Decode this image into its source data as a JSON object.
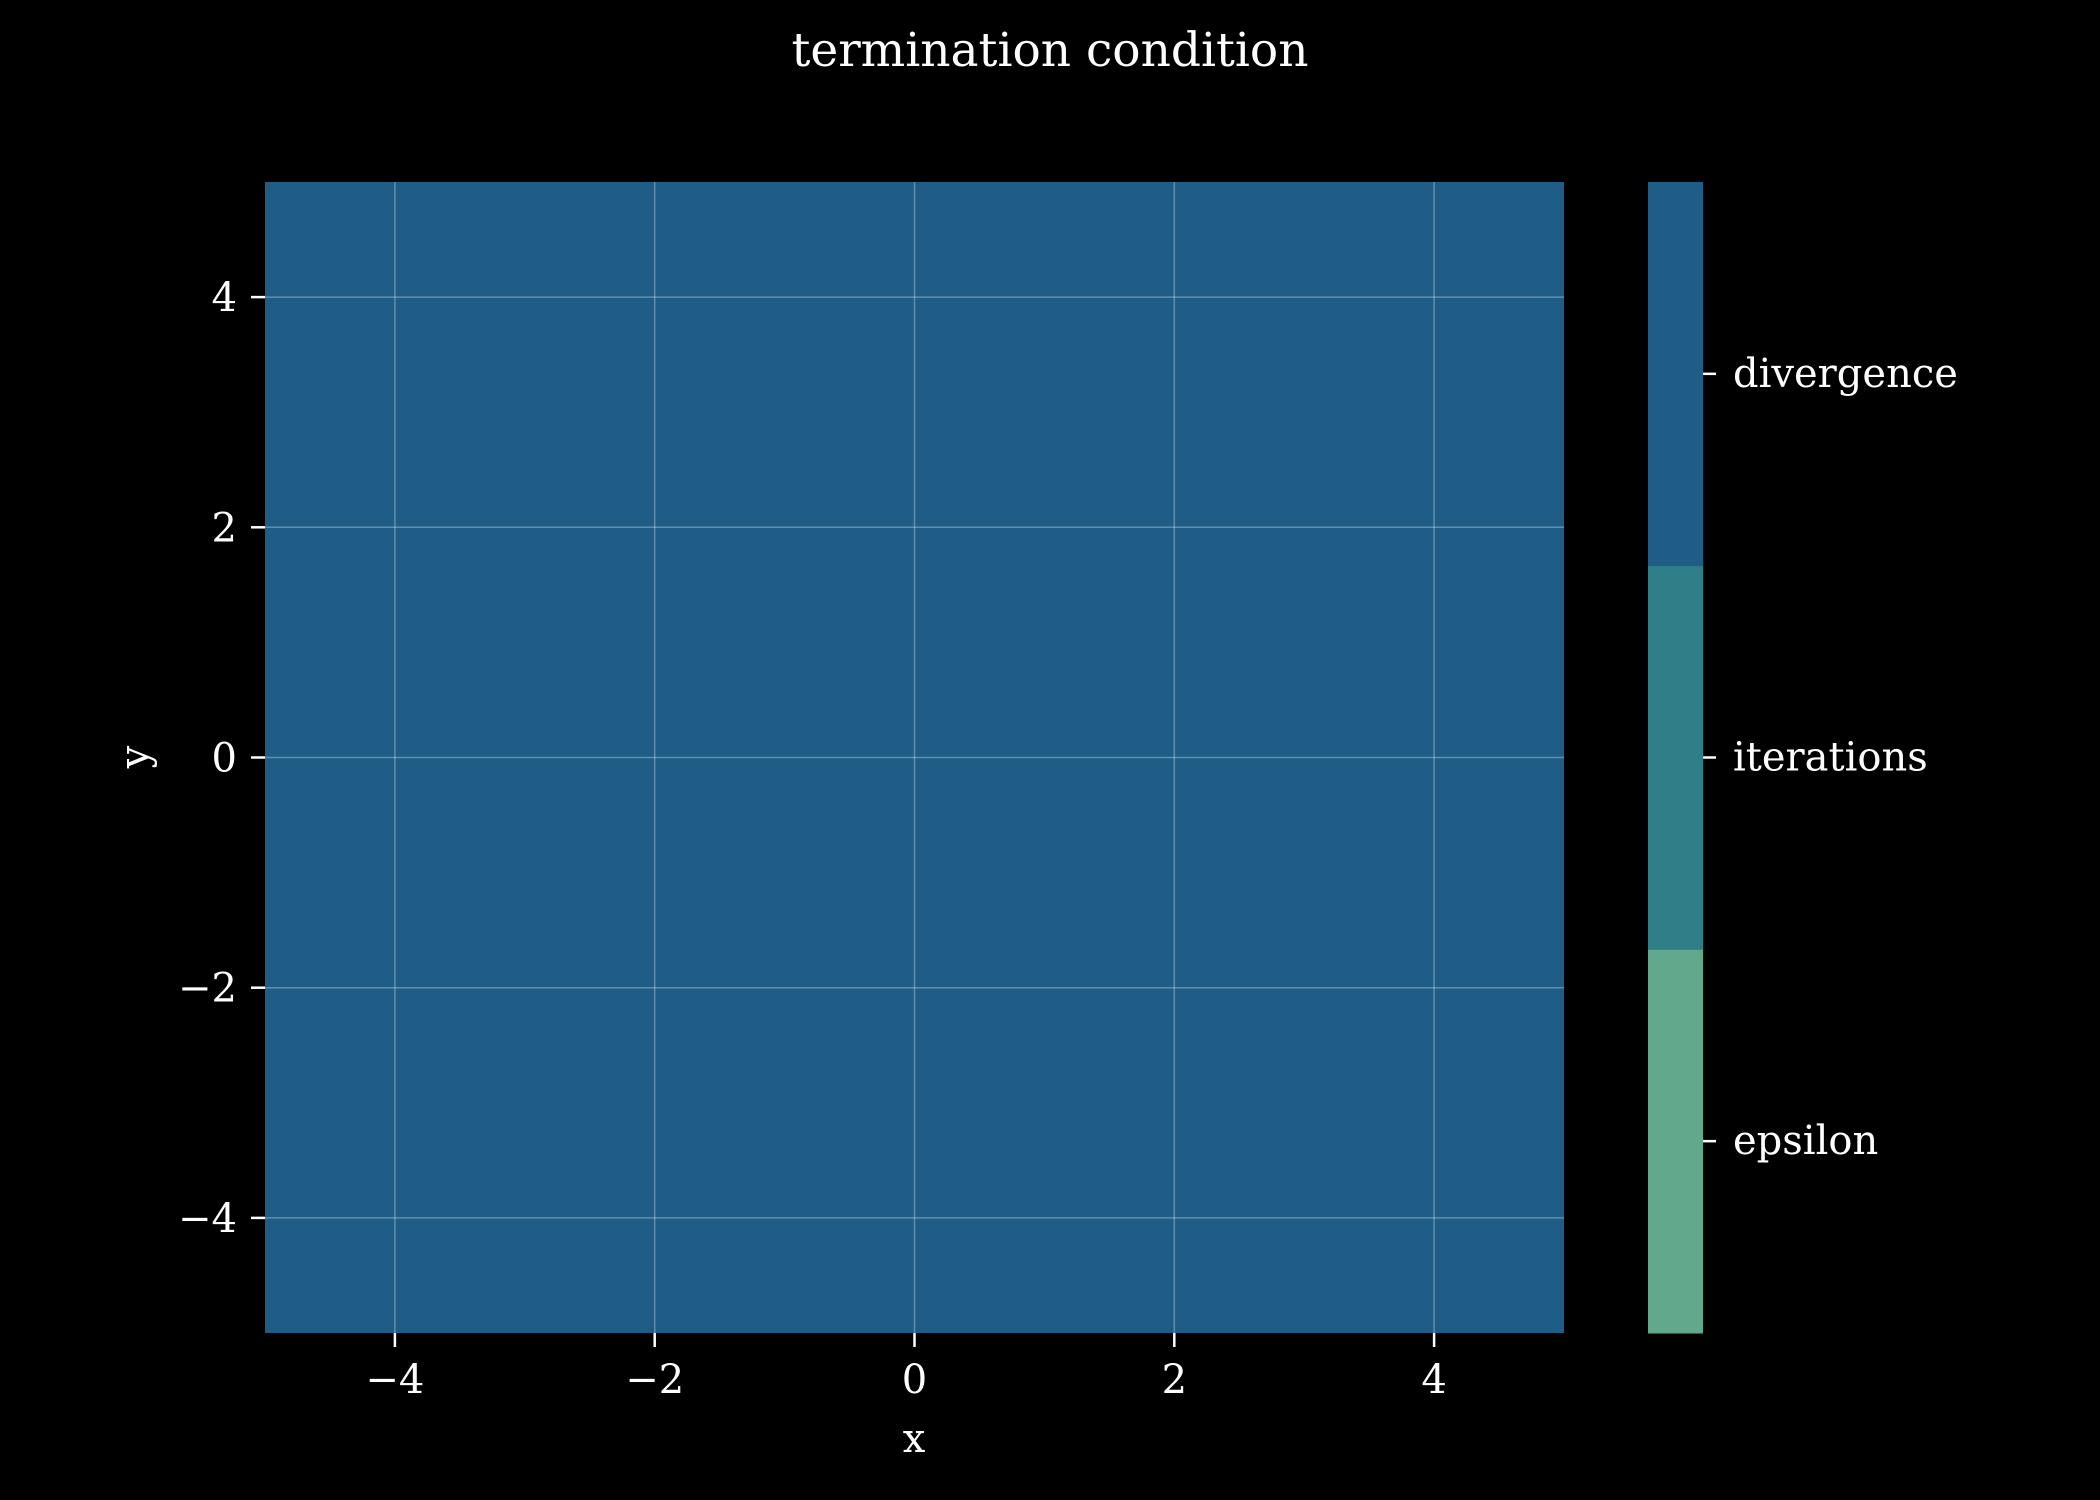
{
  "chart_data": {
    "type": "heatmap",
    "title": "termination condition",
    "xlabel": "x",
    "ylabel": "y",
    "xlim": [
      -5,
      5
    ],
    "ylim": [
      -5,
      5
    ],
    "xticks": [
      -4,
      -2,
      0,
      2,
      4
    ],
    "yticks": [
      -4,
      -2,
      0,
      2,
      4
    ],
    "xtick_labels": [
      "−4",
      "−2",
      "0",
      "2",
      "4"
    ],
    "ytick_labels": [
      "−4",
      "−2",
      "0",
      "2",
      "4"
    ],
    "grid": true,
    "background_color": "#000000",
    "field": {
      "x_range": [
        -5,
        5
      ],
      "y_range": [
        -5,
        5
      ],
      "value": "divergence"
    },
    "colorbar": {
      "categories": [
        {
          "label": "epsilon",
          "color": "#62a88c"
        },
        {
          "label": "iterations",
          "color": "#2e7f88"
        },
        {
          "label": "divergence",
          "color": "#1f5d87"
        }
      ]
    }
  }
}
